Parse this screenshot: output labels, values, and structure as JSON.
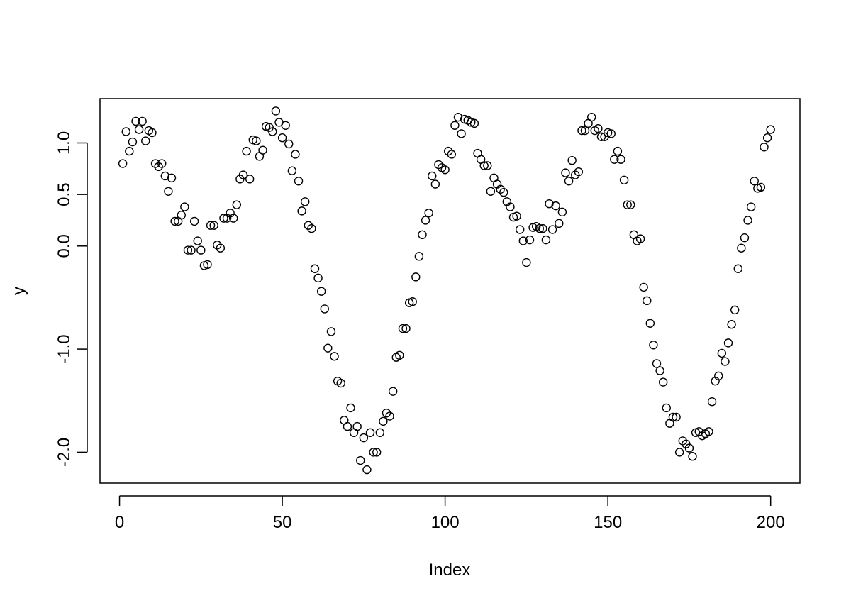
{
  "chart_data": {
    "type": "scatter",
    "xlabel": "Index",
    "ylabel": "y",
    "xlim": [
      -6,
      209
    ],
    "ylim": [
      -2.3,
      1.43
    ],
    "x_ticks": [
      0,
      50,
      100,
      150,
      200
    ],
    "x_tick_labels": [
      "0",
      "50",
      "100",
      "150",
      "200"
    ],
    "y_ticks": [
      -2.0,
      -1.0,
      0.0,
      0.5,
      1.0
    ],
    "y_tick_labels": [
      "-2.0",
      "-1.0",
      "0.0",
      "0.5",
      "1.0"
    ],
    "grid": false,
    "legend": false,
    "marker": "open-circle",
    "colors": {
      "marker": "#000000",
      "axis": "#000000",
      "background": "#ffffff"
    },
    "series": [
      {
        "values": [
          0.8,
          1.11,
          0.92,
          1.01,
          1.21,
          1.13,
          1.21,
          1.02,
          1.12,
          1.1,
          0.8,
          0.77,
          0.8,
          0.68,
          0.53,
          0.66,
          0.24,
          0.24,
          0.3,
          0.38,
          -0.04,
          -0.04,
          0.24,
          0.05,
          -0.04,
          -0.19,
          -0.18,
          0.2,
          0.2,
          0.01,
          -0.02,
          0.27,
          0.27,
          0.32,
          0.27,
          0.4,
          0.65,
          0.69,
          0.92,
          0.65,
          1.03,
          1.02,
          0.87,
          0.93,
          1.16,
          1.15,
          1.11,
          1.31,
          1.2,
          1.05,
          1.17,
          0.99,
          0.73,
          0.89,
          0.63,
          0.34,
          0.43,
          0.2,
          0.17,
          -0.22,
          -0.31,
          -0.44,
          -0.61,
          -0.99,
          -0.83,
          -1.07,
          -1.31,
          -1.33,
          -1.69,
          -1.75,
          -1.57,
          -1.81,
          -1.75,
          -2.08,
          -1.86,
          -2.17,
          -1.81,
          -2.0,
          -2.0,
          -1.81,
          -1.7,
          -1.62,
          -1.65,
          -1.41,
          -1.08,
          -1.06,
          -0.8,
          -0.8,
          -0.55,
          -0.54,
          -0.3,
          -0.1,
          0.11,
          0.25,
          0.32,
          0.68,
          0.6,
          0.79,
          0.76,
          0.74,
          0.92,
          0.89,
          1.17,
          1.25,
          1.09,
          1.23,
          1.22,
          1.2,
          1.19,
          0.9,
          0.84,
          0.78,
          0.78,
          0.53,
          0.66,
          0.6,
          0.55,
          0.52,
          0.43,
          0.38,
          0.28,
          0.29,
          0.16,
          0.05,
          -0.16,
          0.06,
          0.18,
          0.19,
          0.17,
          0.17,
          0.06,
          0.41,
          0.16,
          0.39,
          0.22,
          0.33,
          0.71,
          0.63,
          0.83,
          0.69,
          0.72,
          1.12,
          1.12,
          1.19,
          1.25,
          1.12,
          1.14,
          1.06,
          1.06,
          1.1,
          1.09,
          0.84,
          0.92,
          0.84,
          0.64,
          0.4,
          0.4,
          0.11,
          0.05,
          0.07,
          -0.4,
          -0.53,
          -0.75,
          -0.96,
          -1.14,
          -1.21,
          -1.32,
          -1.57,
          -1.72,
          -1.66,
          -1.66,
          -2.0,
          -1.89,
          -1.92,
          -1.96,
          -2.04,
          -1.81,
          -1.8,
          -1.84,
          -1.82,
          -1.8,
          -1.51,
          -1.31,
          -1.26,
          -1.04,
          -1.12,
          -0.94,
          -0.76,
          -0.62,
          -0.22,
          -0.02,
          0.08,
          0.25,
          0.38,
          0.63,
          0.56,
          0.57,
          0.96,
          1.05,
          1.13
        ]
      }
    ]
  }
}
